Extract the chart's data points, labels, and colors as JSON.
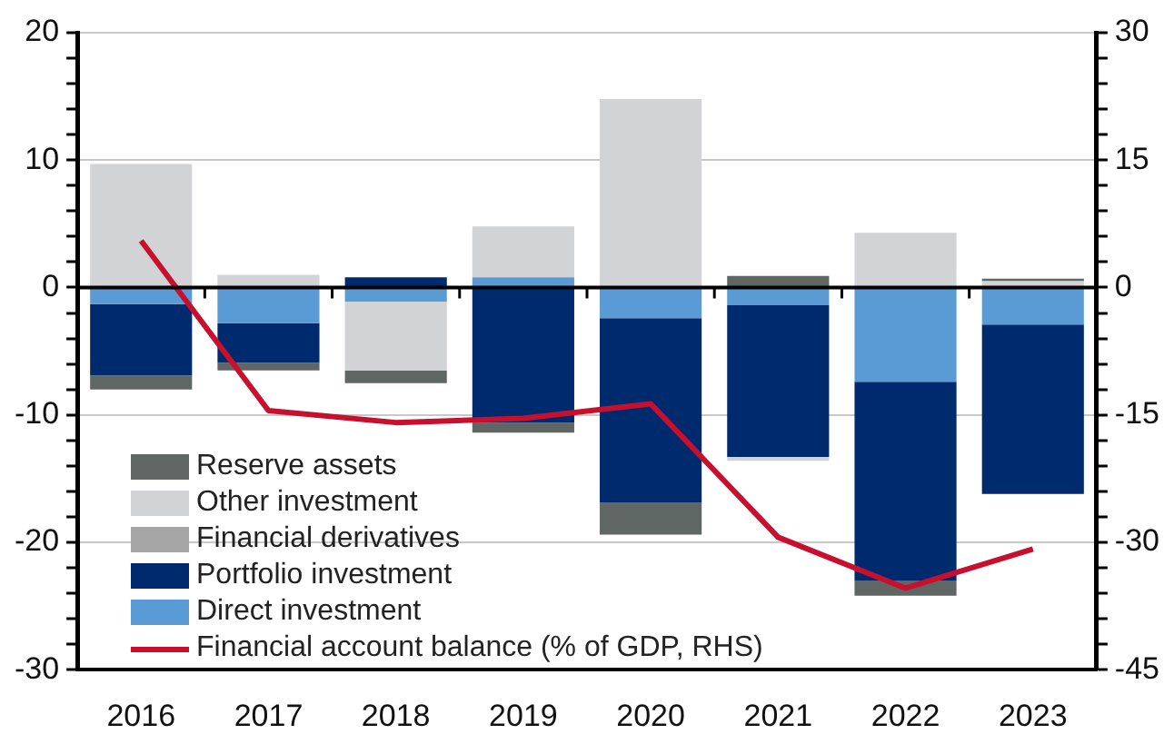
{
  "chart_data": {
    "type": "bar",
    "stacked": true,
    "categories": [
      "2016",
      "2017",
      "2018",
      "2019",
      "2020",
      "2021",
      "2022",
      "2023"
    ],
    "series": [
      {
        "name": "Direct investment",
        "color": "#5b9bd5",
        "values": [
          -1.3,
          -2.8,
          -1.1,
          0.8,
          -2.4,
          -1.4,
          -7.4,
          -2.9
        ]
      },
      {
        "name": "Portfolio investment",
        "color": "#002a6e",
        "values": [
          -5.6,
          -3.1,
          0.8,
          -10.6,
          -14.5,
          -11.9,
          -15.6,
          -13.3
        ]
      },
      {
        "name": "Financial derivatives",
        "color": "#a5a5a5",
        "values": [
          0,
          0,
          0,
          0,
          0,
          0,
          0,
          0
        ]
      },
      {
        "name": "Other investment",
        "color": "#d2d3d5",
        "values": [
          9.7,
          1.0,
          -5.4,
          4.0,
          14.8,
          -0.3,
          4.3,
          0.5
        ]
      },
      {
        "name": "Reserve assets",
        "color": "#5f6664",
        "values": [
          -1.1,
          -0.6,
          -1.0,
          -0.8,
          -2.5,
          0.9,
          -1.2,
          0.2
        ]
      },
      {
        "name": "Financial account balance (% of GDP, RHS)",
        "type": "line",
        "axis": "y2",
        "color": "#c8102e",
        "values": [
          5.5,
          -14.5,
          -15.9,
          -15.4,
          -13.7,
          -29.4,
          -35.4,
          -30.8
        ]
      }
    ],
    "ylim": [
      -30,
      20
    ],
    "yticks": [
      -30,
      {
        "value": -28,
        "label": null
      },
      {
        "value": -26,
        "label": null
      },
      {
        "value": -24,
        "label": null
      },
      {
        "value": -22,
        "label": null
      },
      -20,
      {
        "value": -18,
        "label": null
      },
      {
        "value": -16,
        "label": null
      },
      {
        "value": -14,
        "label": null
      },
      {
        "value": -12,
        "label": null
      },
      -10,
      {
        "value": -8,
        "label": null
      },
      {
        "value": -6,
        "label": null
      },
      {
        "value": -4,
        "label": null
      },
      {
        "value": -2,
        "label": null
      },
      0,
      {
        "value": 2,
        "label": null
      },
      {
        "value": 4,
        "label": null
      },
      {
        "value": 6,
        "label": null
      },
      {
        "value": 8,
        "label": null
      },
      10,
      {
        "value": 12,
        "label": null
      },
      {
        "value": 14,
        "label": null
      },
      {
        "value": 16,
        "label": null
      },
      {
        "value": 18,
        "label": null
      },
      20
    ],
    "y2lim": [
      -45,
      30
    ],
    "y2ticks": [
      -45,
      {
        "value": -42,
        "label": null
      },
      {
        "value": -39,
        "label": null
      },
      {
        "value": -36,
        "label": null
      },
      {
        "value": -33,
        "label": null
      },
      -30,
      {
        "value": -27,
        "label": null
      },
      {
        "value": -24,
        "label": null
      },
      {
        "value": -21,
        "label": null
      },
      {
        "value": -18,
        "label": null
      },
      -15,
      {
        "value": -12,
        "label": null
      },
      {
        "value": -9,
        "label": null
      },
      {
        "value": -6,
        "label": null
      },
      {
        "value": -3,
        "label": null
      },
      0,
      {
        "value": 3,
        "label": null
      },
      {
        "value": 6,
        "label": null
      },
      {
        "value": 9,
        "label": null
      },
      {
        "value": 12,
        "label": null
      },
      15,
      {
        "value": 18,
        "label": null
      },
      {
        "value": 21,
        "label": null
      },
      {
        "value": 24,
        "label": null
      },
      {
        "value": 27,
        "label": null
      },
      30
    ],
    "grid": "y",
    "legend": "bottom left",
    "marker": "none",
    "line_style": "solid"
  }
}
